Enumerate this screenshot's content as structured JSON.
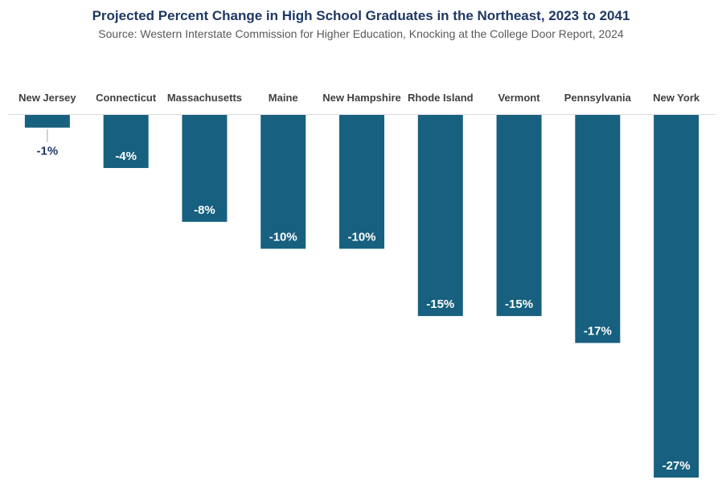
{
  "chart_data": {
    "type": "bar",
    "title": "Projected Percent Change in High School Graduates in the Northeast, 2023 to 2041",
    "subtitle": "Source:  Western Interstate Commission for Higher Education, Knocking at the College Door Report, 2024",
    "categories": [
      "New Jersey",
      "Connecticut",
      "Massachusetts",
      "Maine",
      "New Hampshire",
      "Rhode Island",
      "Vermont",
      "Pennsylvania",
      "New York"
    ],
    "values": [
      -1,
      -4,
      -8,
      -10,
      -10,
      -15,
      -15,
      -17,
      -27
    ],
    "data_labels": [
      "-1%",
      "-4%",
      "-8%",
      "-10%",
      "-10%",
      "-15%",
      "-15%",
      "-17%",
      "-27%"
    ],
    "xlabel": "",
    "ylabel": "",
    "ylim": [
      -27,
      0
    ],
    "category_axis_position": "top",
    "grid": false,
    "legend": "none",
    "colors": {
      "bar": "#17607f",
      "title": "#1f3864",
      "subtitle": "#595959",
      "category_label": "#404040",
      "label_inside": "#ffffff",
      "label_outside": "#1f3864",
      "axis": "#d9d9d9"
    }
  }
}
